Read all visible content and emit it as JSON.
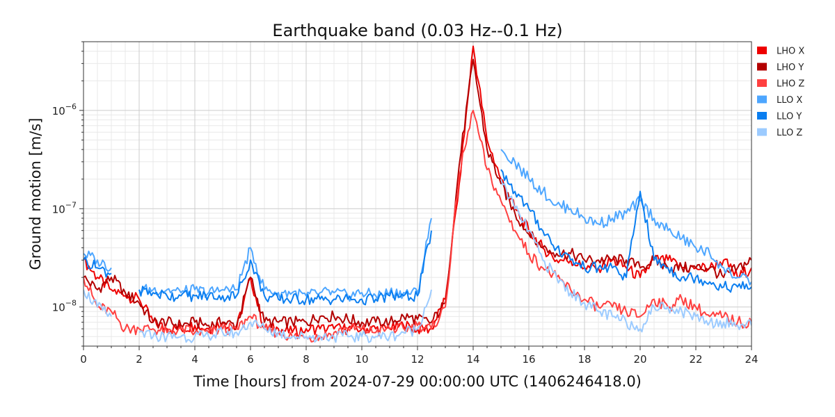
{
  "chart_data": {
    "type": "line",
    "title": "Earthquake band (0.03 Hz--0.1 Hz)",
    "xlabel": "Time [hours] from 2024-07-29 00:00:00 UTC (1406246418.0)",
    "ylabel": "Ground motion [m/s]",
    "xlim": [
      0,
      24
    ],
    "ylim": [
      4e-09,
      5e-06
    ],
    "yscale": "log",
    "grid": true,
    "legend_position": "right",
    "x_ticks": [
      0,
      2,
      4,
      6,
      8,
      10,
      12,
      14,
      16,
      18,
      20,
      22,
      24
    ],
    "x_tick_labels": [
      "0",
      "2",
      "4",
      "6",
      "8",
      "10",
      "12",
      "14",
      "16",
      "18",
      "20",
      "22",
      "24"
    ],
    "y_ticks": [
      1e-08,
      1e-07,
      1e-06
    ],
    "y_tick_labels": [
      {
        "base": "10",
        "exp": "−8"
      },
      {
        "base": "10",
        "exp": "−7"
      },
      {
        "base": "10",
        "exp": "−6"
      }
    ],
    "x": [
      0,
      0.5,
      1,
      1.5,
      2,
      2.5,
      3,
      3.5,
      4,
      4.5,
      5,
      5.5,
      6,
      6.5,
      7,
      7.5,
      8,
      8.5,
      9,
      9.5,
      10,
      10.5,
      11,
      11.5,
      12,
      12.5,
      13,
      13.5,
      14,
      14.5,
      15,
      15.5,
      16,
      16.5,
      17,
      17.5,
      18,
      18.5,
      19,
      19.5,
      20,
      20.5,
      21,
      21.5,
      22,
      22.5,
      23,
      23.5,
      24
    ],
    "series": [
      {
        "name": "LHO X",
        "color": "#ee0000",
        "values": [
          3e-08,
          2e-08,
          1.5e-08,
          1.3e-08,
          1.2e-08,
          7e-09,
          6e-09,
          6e-09,
          6.5e-09,
          6e-09,
          7e-09,
          6e-09,
          2e-08,
          6e-09,
          6e-09,
          5.5e-09,
          6e-09,
          6e-09,
          6e-09,
          6e-09,
          6e-09,
          6e-09,
          6e-09,
          6.5e-09,
          6e-09,
          6e-09,
          1.2e-08,
          1.8e-07,
          4.5e-06,
          5e-07,
          2e-07,
          1e-07,
          6e-08,
          4e-08,
          3e-08,
          3e-08,
          2.5e-08,
          2.5e-08,
          3e-08,
          2.5e-08,
          2e-08,
          3e-08,
          3e-08,
          2.5e-08,
          2.5e-08,
          2.5e-08,
          3e-08,
          2e-08,
          2.5e-08
        ]
      },
      {
        "name": "LHO Y",
        "color": "#b30000",
        "values": [
          2e-08,
          1.5e-08,
          2e-08,
          1.4e-08,
          1.1e-08,
          7e-09,
          7e-09,
          6.5e-09,
          7e-09,
          6.5e-09,
          7e-09,
          6.5e-09,
          2e-08,
          7e-09,
          7e-09,
          7e-09,
          7e-09,
          8e-09,
          8e-09,
          7.5e-09,
          7e-09,
          7e-09,
          7e-09,
          8e-09,
          7.5e-09,
          7e-09,
          1.1e-08,
          2.8e-07,
          3.3e-06,
          4e-07,
          1.8e-07,
          9e-08,
          5.5e-08,
          4e-08,
          3.5e-08,
          3.5e-08,
          3e-08,
          3e-08,
          3e-08,
          3e-08,
          2.5e-08,
          3e-08,
          2.5e-08,
          2.5e-08,
          2.5e-08,
          2.5e-08,
          2e-08,
          2.5e-08,
          3e-08
        ]
      },
      {
        "name": "LHO Z",
        "color": "#ff4040",
        "values": [
          2e-08,
          1e-08,
          9e-09,
          6e-09,
          6e-09,
          6e-09,
          5.5e-09,
          6e-09,
          5.5e-09,
          5.5e-09,
          6e-09,
          6e-09,
          8e-09,
          6e-09,
          5.5e-09,
          5e-09,
          5e-09,
          5e-09,
          5.5e-09,
          6e-09,
          6e-09,
          5.5e-09,
          6e-09,
          6e-09,
          6.5e-09,
          6e-09,
          1e-08,
          2.2e-07,
          1e-06,
          2.5e-07,
          1.2e-07,
          6e-08,
          3.5e-08,
          2.5e-08,
          2e-08,
          1.5e-08,
          1.2e-08,
          1e-08,
          1e-08,
          9e-09,
          8e-09,
          1.2e-08,
          1e-08,
          1.2e-08,
          1e-08,
          8e-09,
          8e-09,
          7e-09,
          7e-09
        ]
      },
      {
        "name": "LLO X",
        "color": "#4da6ff",
        "values": [
          3.5e-08,
          3e-08,
          2.5e-08,
          null,
          1.5e-08,
          1.5e-08,
          1.5e-08,
          1.4e-08,
          1.5e-08,
          1.4e-08,
          1.5e-08,
          1.5e-08,
          4e-08,
          1.5e-08,
          1.4e-08,
          1.4e-08,
          1.3e-08,
          1.4e-08,
          1.4e-08,
          1.3e-08,
          1.4e-08,
          1.3e-08,
          1.4e-08,
          1.4e-08,
          1.4e-08,
          8e-08,
          null,
          null,
          null,
          null,
          4e-07,
          3e-07,
          2e-07,
          1.5e-07,
          1.1e-07,
          1e-07,
          8e-08,
          7e-08,
          8e-08,
          9e-08,
          1.2e-07,
          8e-08,
          6e-08,
          5e-08,
          4e-08,
          3.5e-08,
          2.5e-08,
          2e-08,
          1.8e-08
        ]
      },
      {
        "name": "LLO Y",
        "color": "#0a7ef0",
        "values": [
          3e-08,
          2.5e-08,
          2.2e-08,
          null,
          1.5e-08,
          1.4e-08,
          1.3e-08,
          1.3e-08,
          1.3e-08,
          1.3e-08,
          1.3e-08,
          1.3e-08,
          3e-08,
          1.3e-08,
          1.2e-08,
          1.2e-08,
          1.2e-08,
          1.2e-08,
          1.2e-08,
          1.2e-08,
          1.2e-08,
          1.2e-08,
          1.3e-08,
          1.3e-08,
          1.3e-08,
          6e-08,
          null,
          null,
          null,
          null,
          2.5e-07,
          1.5e-07,
          1e-07,
          6e-08,
          4e-08,
          3e-08,
          2.5e-08,
          2.5e-08,
          2.5e-08,
          2e-08,
          1.5e-07,
          3e-08,
          2.5e-08,
          2e-08,
          2e-08,
          1.8e-08,
          1.6e-08,
          1.6e-08,
          1.6e-08
        ]
      },
      {
        "name": "LLO Z",
        "color": "#9ccbff",
        "values": [
          1.5e-08,
          1e-08,
          8e-09,
          null,
          5.5e-09,
          5e-09,
          5e-09,
          5e-09,
          5e-09,
          5e-09,
          5.5e-09,
          5.5e-09,
          7e-09,
          6e-09,
          5.5e-09,
          5e-09,
          5e-09,
          5e-09,
          5e-09,
          5e-09,
          5e-09,
          5e-09,
          5e-09,
          5.5e-09,
          6e-09,
          1.5e-08,
          null,
          null,
          null,
          null,
          2e-07,
          1e-07,
          6e-08,
          3e-08,
          2e-08,
          1.4e-08,
          1.1e-08,
          9e-09,
          8e-09,
          7e-09,
          6e-09,
          1e-08,
          1e-08,
          9e-09,
          8e-09,
          7e-09,
          7e-09,
          6.5e-09,
          6.5e-09
        ]
      }
    ]
  }
}
